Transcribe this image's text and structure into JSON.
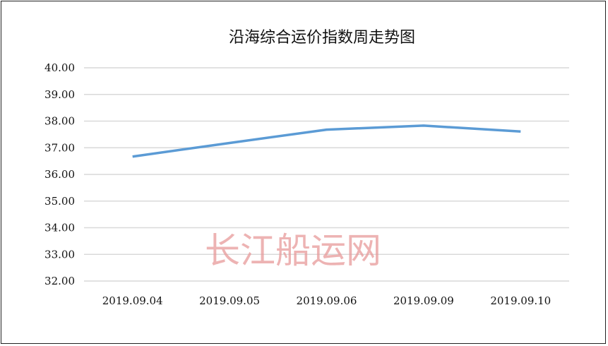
{
  "chart_data": {
    "type": "line",
    "title": "沿海综合运价指数周走势图",
    "categories": [
      "2019.09.04",
      "2019.09.05",
      "2019.09.06",
      "2019.09.09",
      "2019.09.10"
    ],
    "values": [
      36.67,
      37.18,
      37.68,
      37.83,
      37.61
    ],
    "ylim": [
      32,
      40
    ],
    "yticks": [
      "32.00",
      "33.00",
      "34.00",
      "35.00",
      "36.00",
      "37.00",
      "38.00",
      "39.00",
      "40.00"
    ],
    "grid": true,
    "line_color": "#5b9bd5",
    "xlabel": "",
    "ylabel": ""
  },
  "watermark": "长江船运网"
}
